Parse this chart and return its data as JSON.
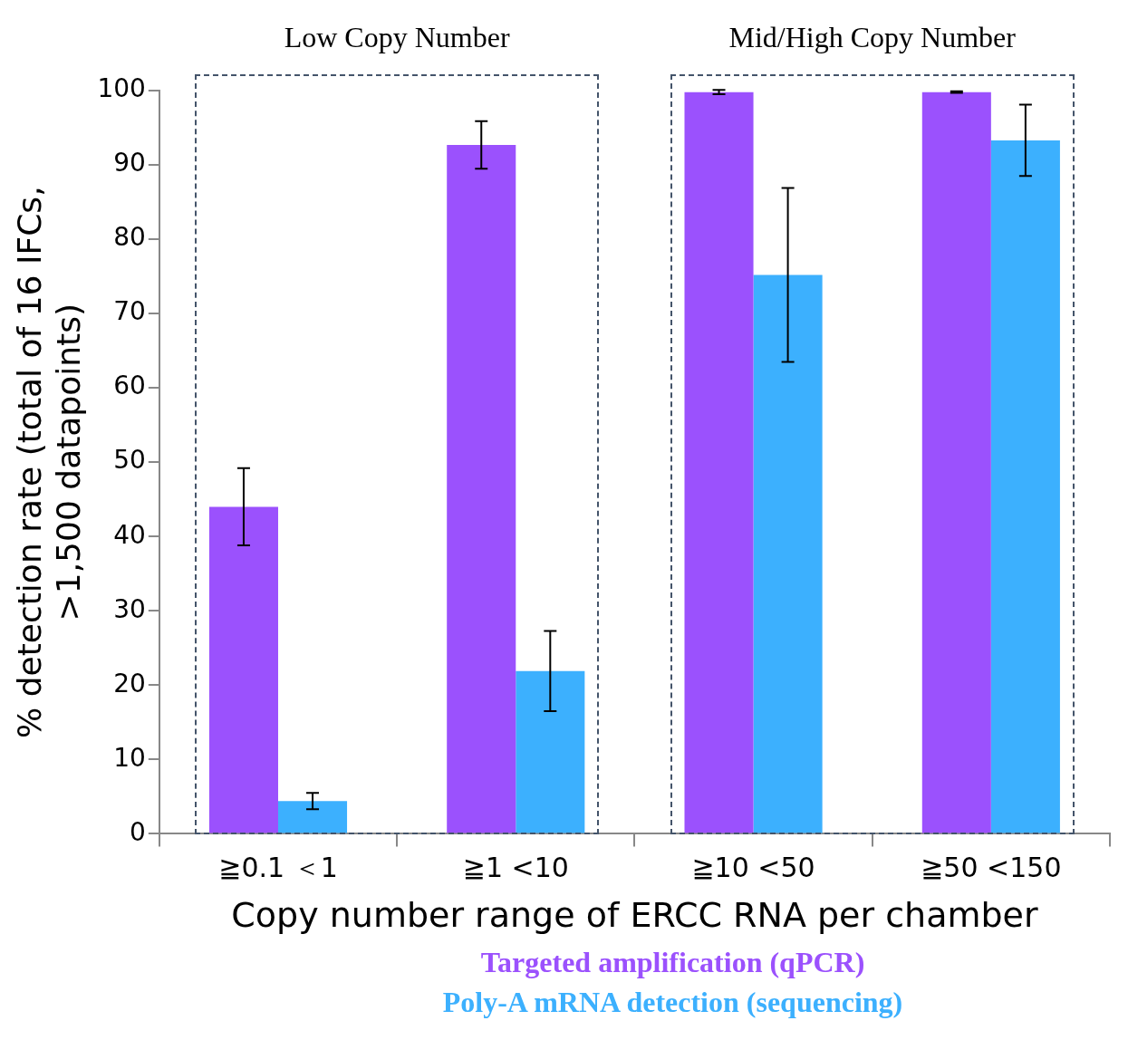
{
  "chart_data": {
    "type": "bar",
    "xlabel": "Copy number range of ERCC RNA per chamber",
    "ylabel": "% detection rate (total of 16 IFCs, >1,500 datapoints)",
    "categories": [
      "≧0.1 ＜1",
      "≧1 <10",
      "≧10 <50",
      "≧50 <150"
    ],
    "series": [
      {
        "name": "Targeted amplification (qPCR)",
        "color": "#9b51fd",
        "values": [
          44,
          92.7,
          99.8,
          99.8
        ],
        "errors": [
          5.2,
          3.2,
          0.3,
          0.1
        ]
      },
      {
        "name": "Poly-A mRNA detection (sequencing)",
        "color": "#3cb0fe",
        "values": [
          4.4,
          21.9,
          75.2,
          93.3
        ],
        "errors": [
          1.1,
          5.4,
          11.7,
          4.8
        ]
      }
    ],
    "ylim": [
      0,
      100
    ],
    "yticks": [
      0,
      10,
      20,
      30,
      40,
      50,
      60,
      70,
      80,
      90,
      100
    ],
    "grid": false,
    "legend": "bottom",
    "annotations": [
      "Low Copy Number",
      "Mid/High Copy Number"
    ]
  }
}
